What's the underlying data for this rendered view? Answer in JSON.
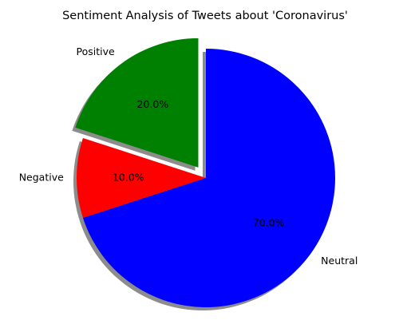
{
  "chart_data": {
    "type": "pie",
    "title": "Sentiment Analysis of Tweets about 'Coronavirus'",
    "categories": [
      "Positive",
      "Negative",
      "Neutral"
    ],
    "values": [
      20,
      10,
      70
    ],
    "percent_labels": [
      "20.0%",
      "10.0%",
      "70.0%"
    ],
    "colors": [
      "#008000",
      "#ff0000",
      "#0000ff"
    ],
    "explode": [
      0.1,
      0,
      0
    ],
    "start_angle_deg": 90,
    "shadow": true
  }
}
